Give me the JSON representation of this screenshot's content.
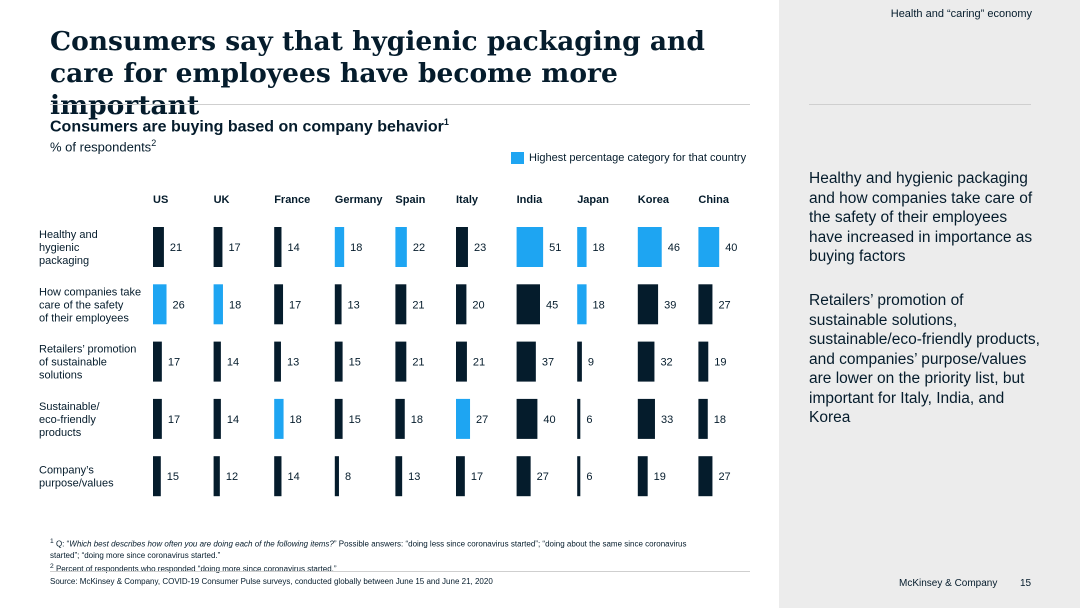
{
  "header": {
    "section": "Health and “caring” economy",
    "title": "Consumers say that hygienic packaging and care for employees have become more important"
  },
  "chart_header": {
    "subtitle": "Consumers are buying based on company behavior",
    "subtitle_sup": "1",
    "units": "% of respondents",
    "units_sup": "2"
  },
  "chart_data": {
    "type": "bar",
    "orientation": "horizontal",
    "panels": [
      "US",
      "UK",
      "France",
      "Germany",
      "Spain",
      "Italy",
      "India",
      "Japan",
      "Korea",
      "China"
    ],
    "categories": [
      [
        "Healthy and",
        "hygienic",
        "packaging"
      ],
      [
        "How companies take",
        "care of the safety",
        "of their employees"
      ],
      [
        "Retailers’ promotion",
        "of sustainable",
        "solutions"
      ],
      [
        "Sustainable/",
        "eco-friendly",
        "products"
      ],
      [
        "Company’s",
        "purpose/values"
      ]
    ],
    "values": [
      [
        21,
        17,
        14,
        18,
        22,
        23,
        51,
        18,
        46,
        40
      ],
      [
        26,
        18,
        17,
        13,
        21,
        20,
        45,
        18,
        39,
        27
      ],
      [
        17,
        14,
        13,
        15,
        21,
        21,
        37,
        9,
        32,
        19
      ],
      [
        17,
        14,
        18,
        15,
        18,
        27,
        40,
        6,
        33,
        18
      ],
      [
        15,
        12,
        14,
        8,
        13,
        17,
        27,
        6,
        19,
        27
      ]
    ],
    "legend": "Highest percentage category for that country",
    "colors": {
      "default": "#051c2c",
      "highest": "#1ea5f2"
    },
    "grid": false
  },
  "side_text": [
    "Healthy and hygienic packaging and how companies take care of the safety of their employees have increased in importance as buying factors",
    "Retailers’ promotion of sustainable solutions, sustainable/eco-friendly products, and companies’ purpose/values are lower on the priority list, but important for Italy, India, and Korea"
  ],
  "footnotes": {
    "note1_mark": "1",
    "note1_q": "Q: “",
    "note1_question": "Which best describes how often you are doing each of the following items?",
    "note1_rest": "” Possible answers: “doing less since coronavirus started”; “doing about the same since coronavirus started”; “doing more since coronavirus started.”",
    "note2_mark": "2",
    "note2": "Percent of respondents who responded “doing more since coronavirus started.”",
    "source": "Source: McKinsey & Company, COVID-19 Consumer Pulse surveys, conducted globally between June 15 and June 21, 2020"
  },
  "footer": {
    "brand": "McKinsey & Company",
    "page": "15"
  }
}
